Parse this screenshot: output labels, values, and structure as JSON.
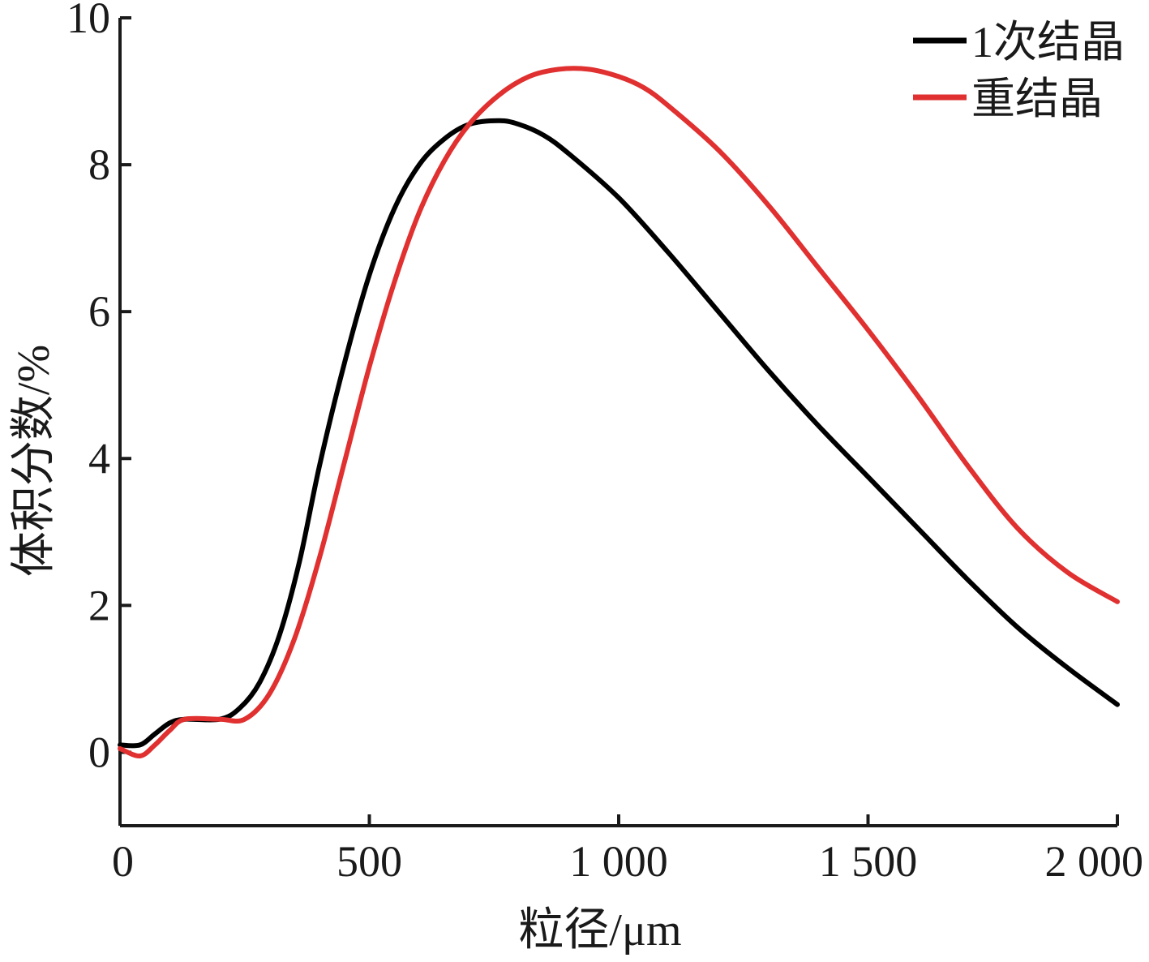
{
  "chart_data": {
    "type": "line",
    "xlabel": "粒径/μm",
    "ylabel": "体积分数/%",
    "xlim": [
      0,
      2000
    ],
    "ylim": [
      -1,
      10
    ],
    "x_ticks": [
      {
        "value": 0,
        "label": "0"
      },
      {
        "value": 500,
        "label": "500"
      },
      {
        "value": 1000,
        "label": "1 000"
      },
      {
        "value": 1500,
        "label": "1 500"
      },
      {
        "value": 2000,
        "label": "2 000"
      }
    ],
    "y_ticks": [
      {
        "value": 0,
        "label": "0"
      },
      {
        "value": 2,
        "label": "2"
      },
      {
        "value": 4,
        "label": "4"
      },
      {
        "value": 6,
        "label": "6"
      },
      {
        "value": 8,
        "label": "8"
      },
      {
        "value": 10,
        "label": "10"
      }
    ],
    "grid": false,
    "legend_position": "top-right",
    "series": [
      {
        "name": "1次结晶",
        "color": "#000000",
        "points": [
          [
            0,
            0.1
          ],
          [
            40,
            0.1
          ],
          [
            70,
            0.25
          ],
          [
            100,
            0.4
          ],
          [
            130,
            0.45
          ],
          [
            200,
            0.45
          ],
          [
            240,
            0.6
          ],
          [
            280,
            0.95
          ],
          [
            320,
            1.6
          ],
          [
            360,
            2.6
          ],
          [
            400,
            3.9
          ],
          [
            450,
            5.3
          ],
          [
            500,
            6.5
          ],
          [
            550,
            7.4
          ],
          [
            600,
            8.0
          ],
          [
            650,
            8.35
          ],
          [
            700,
            8.55
          ],
          [
            760,
            8.6
          ],
          [
            800,
            8.55
          ],
          [
            850,
            8.4
          ],
          [
            900,
            8.15
          ],
          [
            1000,
            7.55
          ],
          [
            1100,
            6.8
          ],
          [
            1200,
            6.0
          ],
          [
            1300,
            5.2
          ],
          [
            1400,
            4.45
          ],
          [
            1500,
            3.75
          ],
          [
            1600,
            3.05
          ],
          [
            1700,
            2.35
          ],
          [
            1800,
            1.7
          ],
          [
            1900,
            1.15
          ],
          [
            2000,
            0.65
          ]
        ]
      },
      {
        "name": "重结晶",
        "color": "#e03030",
        "points": [
          [
            0,
            0.05
          ],
          [
            40,
            -0.05
          ],
          [
            70,
            0.1
          ],
          [
            100,
            0.3
          ],
          [
            130,
            0.45
          ],
          [
            200,
            0.45
          ],
          [
            250,
            0.45
          ],
          [
            300,
            0.8
          ],
          [
            350,
            1.55
          ],
          [
            400,
            2.65
          ],
          [
            450,
            3.95
          ],
          [
            500,
            5.25
          ],
          [
            550,
            6.4
          ],
          [
            600,
            7.35
          ],
          [
            650,
            8.05
          ],
          [
            700,
            8.55
          ],
          [
            760,
            8.95
          ],
          [
            820,
            9.2
          ],
          [
            880,
            9.3
          ],
          [
            940,
            9.3
          ],
          [
            1000,
            9.2
          ],
          [
            1050,
            9.05
          ],
          [
            1100,
            8.8
          ],
          [
            1200,
            8.2
          ],
          [
            1300,
            7.45
          ],
          [
            1400,
            6.6
          ],
          [
            1500,
            5.75
          ],
          [
            1600,
            4.85
          ],
          [
            1700,
            3.9
          ],
          [
            1800,
            3.05
          ],
          [
            1900,
            2.45
          ],
          [
            2000,
            2.05
          ]
        ]
      }
    ]
  }
}
